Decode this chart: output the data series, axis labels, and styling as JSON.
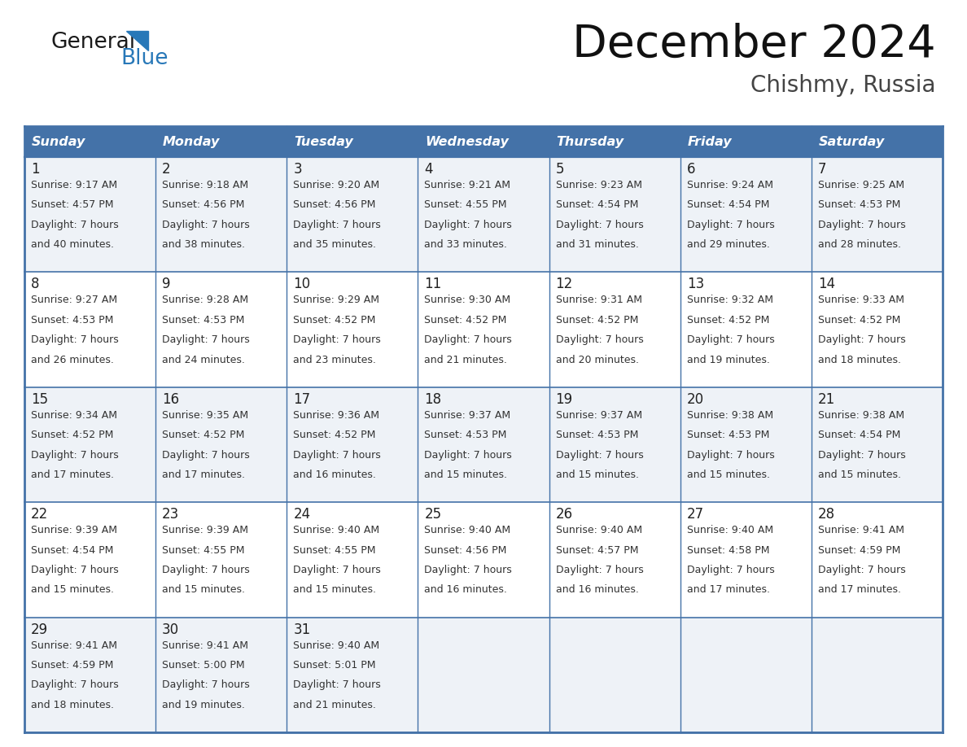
{
  "title": "December 2024",
  "subtitle": "Chishmy, Russia",
  "days_of_week": [
    "Sunday",
    "Monday",
    "Tuesday",
    "Wednesday",
    "Thursday",
    "Friday",
    "Saturday"
  ],
  "header_bg": "#4472a8",
  "header_text": "#ffffff",
  "row_bg_odd": "#eef2f7",
  "row_bg_even": "#ffffff",
  "cell_border": "#4472a8",
  "day_num_color": "#222222",
  "text_color": "#333333",
  "logo_general_color": "#1a1a1a",
  "logo_blue_color": "#2878b8",
  "calendar_data": [
    [
      {
        "day": "1",
        "sunrise": "9:17 AM",
        "sunset": "4:57 PM",
        "daylight": "7 hours",
        "daylight2": "and 40 minutes."
      },
      {
        "day": "2",
        "sunrise": "9:18 AM",
        "sunset": "4:56 PM",
        "daylight": "7 hours",
        "daylight2": "and 38 minutes."
      },
      {
        "day": "3",
        "sunrise": "9:20 AM",
        "sunset": "4:56 PM",
        "daylight": "7 hours",
        "daylight2": "and 35 minutes."
      },
      {
        "day": "4",
        "sunrise": "9:21 AM",
        "sunset": "4:55 PM",
        "daylight": "7 hours",
        "daylight2": "and 33 minutes."
      },
      {
        "day": "5",
        "sunrise": "9:23 AM",
        "sunset": "4:54 PM",
        "daylight": "7 hours",
        "daylight2": "and 31 minutes."
      },
      {
        "day": "6",
        "sunrise": "9:24 AM",
        "sunset": "4:54 PM",
        "daylight": "7 hours",
        "daylight2": "and 29 minutes."
      },
      {
        "day": "7",
        "sunrise": "9:25 AM",
        "sunset": "4:53 PM",
        "daylight": "7 hours",
        "daylight2": "and 28 minutes."
      }
    ],
    [
      {
        "day": "8",
        "sunrise": "9:27 AM",
        "sunset": "4:53 PM",
        "daylight": "7 hours",
        "daylight2": "and 26 minutes."
      },
      {
        "day": "9",
        "sunrise": "9:28 AM",
        "sunset": "4:53 PM",
        "daylight": "7 hours",
        "daylight2": "and 24 minutes."
      },
      {
        "day": "10",
        "sunrise": "9:29 AM",
        "sunset": "4:52 PM",
        "daylight": "7 hours",
        "daylight2": "and 23 minutes."
      },
      {
        "day": "11",
        "sunrise": "9:30 AM",
        "sunset": "4:52 PM",
        "daylight": "7 hours",
        "daylight2": "and 21 minutes."
      },
      {
        "day": "12",
        "sunrise": "9:31 AM",
        "sunset": "4:52 PM",
        "daylight": "7 hours",
        "daylight2": "and 20 minutes."
      },
      {
        "day": "13",
        "sunrise": "9:32 AM",
        "sunset": "4:52 PM",
        "daylight": "7 hours",
        "daylight2": "and 19 minutes."
      },
      {
        "day": "14",
        "sunrise": "9:33 AM",
        "sunset": "4:52 PM",
        "daylight": "7 hours",
        "daylight2": "and 18 minutes."
      }
    ],
    [
      {
        "day": "15",
        "sunrise": "9:34 AM",
        "sunset": "4:52 PM",
        "daylight": "7 hours",
        "daylight2": "and 17 minutes."
      },
      {
        "day": "16",
        "sunrise": "9:35 AM",
        "sunset": "4:52 PM",
        "daylight": "7 hours",
        "daylight2": "and 17 minutes."
      },
      {
        "day": "17",
        "sunrise": "9:36 AM",
        "sunset": "4:52 PM",
        "daylight": "7 hours",
        "daylight2": "and 16 minutes."
      },
      {
        "day": "18",
        "sunrise": "9:37 AM",
        "sunset": "4:53 PM",
        "daylight": "7 hours",
        "daylight2": "and 15 minutes."
      },
      {
        "day": "19",
        "sunrise": "9:37 AM",
        "sunset": "4:53 PM",
        "daylight": "7 hours",
        "daylight2": "and 15 minutes."
      },
      {
        "day": "20",
        "sunrise": "9:38 AM",
        "sunset": "4:53 PM",
        "daylight": "7 hours",
        "daylight2": "and 15 minutes."
      },
      {
        "day": "21",
        "sunrise": "9:38 AM",
        "sunset": "4:54 PM",
        "daylight": "7 hours",
        "daylight2": "and 15 minutes."
      }
    ],
    [
      {
        "day": "22",
        "sunrise": "9:39 AM",
        "sunset": "4:54 PM",
        "daylight": "7 hours",
        "daylight2": "and 15 minutes."
      },
      {
        "day": "23",
        "sunrise": "9:39 AM",
        "sunset": "4:55 PM",
        "daylight": "7 hours",
        "daylight2": "and 15 minutes."
      },
      {
        "day": "24",
        "sunrise": "9:40 AM",
        "sunset": "4:55 PM",
        "daylight": "7 hours",
        "daylight2": "and 15 minutes."
      },
      {
        "day": "25",
        "sunrise": "9:40 AM",
        "sunset": "4:56 PM",
        "daylight": "7 hours",
        "daylight2": "and 16 minutes."
      },
      {
        "day": "26",
        "sunrise": "9:40 AM",
        "sunset": "4:57 PM",
        "daylight": "7 hours",
        "daylight2": "and 16 minutes."
      },
      {
        "day": "27",
        "sunrise": "9:40 AM",
        "sunset": "4:58 PM",
        "daylight": "7 hours",
        "daylight2": "and 17 minutes."
      },
      {
        "day": "28",
        "sunrise": "9:41 AM",
        "sunset": "4:59 PM",
        "daylight": "7 hours",
        "daylight2": "and 17 minutes."
      }
    ],
    [
      {
        "day": "29",
        "sunrise": "9:41 AM",
        "sunset": "4:59 PM",
        "daylight": "7 hours",
        "daylight2": "and 18 minutes."
      },
      {
        "day": "30",
        "sunrise": "9:41 AM",
        "sunset": "5:00 PM",
        "daylight": "7 hours",
        "daylight2": "and 19 minutes."
      },
      {
        "day": "31",
        "sunrise": "9:40 AM",
        "sunset": "5:01 PM",
        "daylight": "7 hours",
        "daylight2": "and 21 minutes."
      },
      null,
      null,
      null,
      null
    ]
  ]
}
